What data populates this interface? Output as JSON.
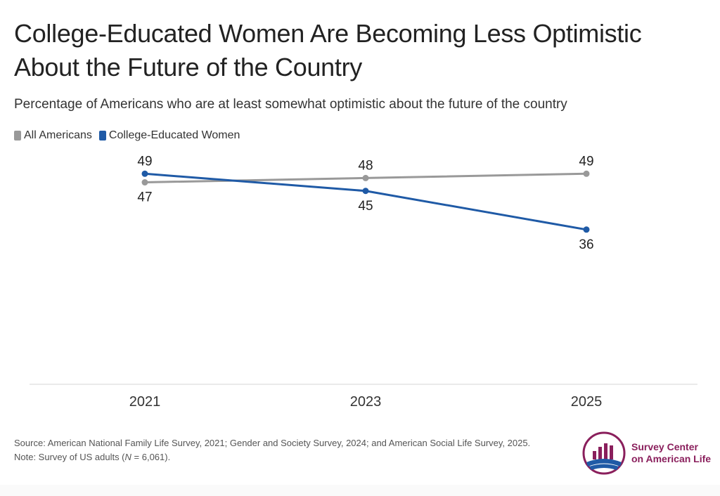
{
  "title": "College-Educated Women Are Becoming Less Optimistic About the Future of the Country",
  "subtitle": "Percentage of Americans who are at least somewhat optimistic about the future of the country",
  "legend": [
    {
      "label": "All Americans",
      "color": "#999999"
    },
    {
      "label": "College-Educated Women",
      "color": "#1f5aa6"
    }
  ],
  "chart_data": {
    "type": "line",
    "categories": [
      "2021",
      "2023",
      "2025"
    ],
    "series": [
      {
        "name": "All Americans",
        "values": [
          47,
          48,
          49
        ],
        "color": "#999999",
        "label_position": [
          "below",
          "above",
          "above"
        ]
      },
      {
        "name": "College-Educated Women",
        "values": [
          49,
          45,
          36
        ],
        "color": "#1f5aa6",
        "label_position": [
          "above",
          "below",
          "below"
        ]
      }
    ],
    "ylim": [
      0,
      60
    ],
    "grid": false,
    "legend_position": "top-left"
  },
  "footer": {
    "source": "Source: American National Family Life Survey, 2021; Gender and Society Survey, 2024; and American Social Life Survey, 2025.",
    "note_prefix": "Note: Survey of US adults (",
    "note_n": "N",
    "note_suffix": " = 6,061)."
  },
  "logo": {
    "line1": "Survey Center",
    "line2": "on American Life",
    "colors": {
      "purple": "#8a1f5c",
      "blue": "#1f5aa6"
    }
  }
}
